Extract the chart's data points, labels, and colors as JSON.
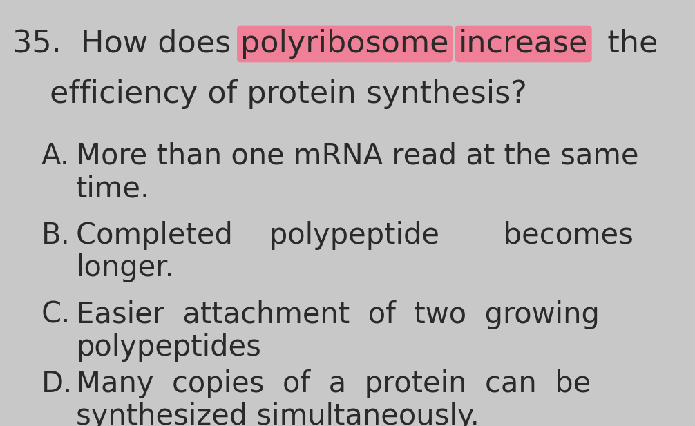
{
  "background_color": "#c8c8c8",
  "text_color": "#2a2a2a",
  "highlight_color": "#f08098",
  "font_size_question": 32,
  "font_size_options": 30,
  "q_num": "35.",
  "q_plain1": "How does ",
  "q_hl1": "polyribosome",
  "q_plain2": " ",
  "q_hl2": "increase",
  "q_plain3": "  the",
  "q_line2": "efficiency of protein synthesis?",
  "opt_A_l1": "More than one mRNA read at the same",
  "opt_A_l2": "time.",
  "opt_B_l1": "Completed    polypeptide       becomes",
  "opt_B_l2": "longer.",
  "opt_C_l1": "Easier  attachment  of  two  growing",
  "opt_C_l2": "polypeptides",
  "opt_D_l1": "Many  copies  of  a  protein  can  be",
  "opt_D_l2": "synthesized simultaneously.",
  "fig_width": 10.06,
  "fig_height": 6.17,
  "dpi": 100
}
